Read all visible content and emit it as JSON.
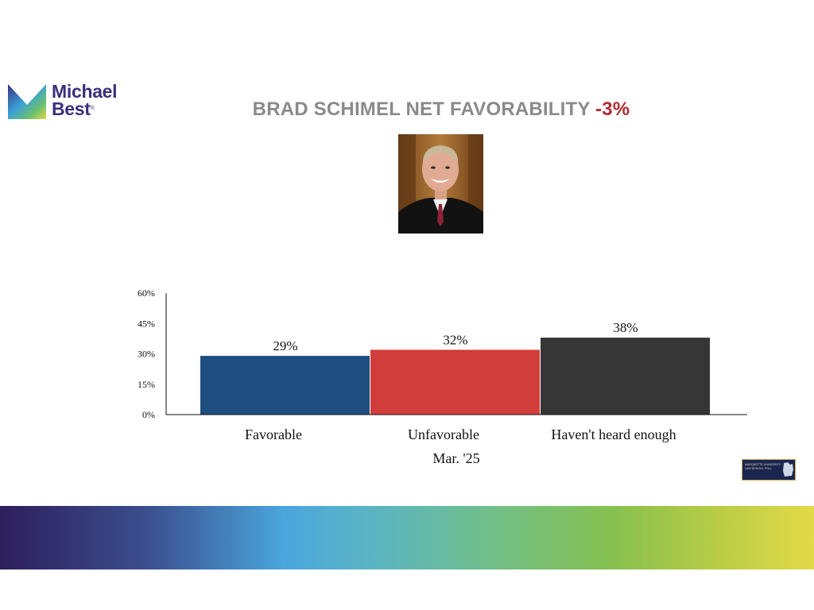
{
  "logo": {
    "line1": "Michael",
    "line2": "Best",
    "reg": "®"
  },
  "title": {
    "main": "BRAD SCHIMEL NET FAVORABILITY ",
    "net": "-3%"
  },
  "photo": {
    "subject": "portrait-photo"
  },
  "colors": {
    "favorable": "#1f4e80",
    "unfavorable": "#d03d3a",
    "neither": "#363636",
    "title_gray": "#8a8a8a",
    "net_red": "#b22a2e",
    "brand_purple": "#3a2e7c"
  },
  "chart_data": {
    "type": "bar",
    "title": "BRAD SCHIMEL NET FAVORABILITY -3%",
    "categories": [
      "Favorable",
      "Unfavorable",
      "Haven't heard enough"
    ],
    "series": [
      {
        "name": "Mar. '25",
        "values": [
          29,
          32,
          38
        ],
        "labels": [
          "29%",
          "32%",
          "38%"
        ]
      }
    ],
    "xlabel": "Mar. '25",
    "ylabel": "",
    "ylim": [
      0,
      60
    ],
    "yticks": [
      "0%",
      "15%",
      "30%",
      "45%",
      "60%"
    ],
    "ytick_values": [
      0,
      15,
      30,
      45,
      60
    ],
    "grid": false,
    "legend": "none"
  },
  "badge": {
    "text": "Marquette University Law School Poll"
  }
}
